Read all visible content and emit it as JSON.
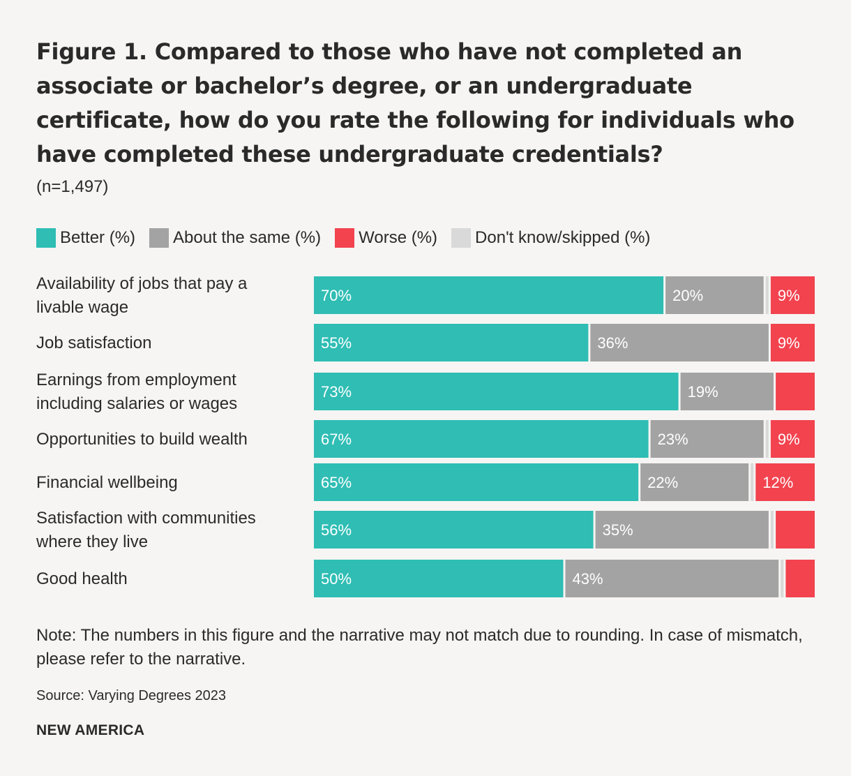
{
  "header": {
    "title": "Figure 1. Compared to those who have not completed an associate or bachelor’s degree, or an undergraduate certificate, how do you rate the following for individuals who have completed these undergraduate credentials?",
    "subtitle": "(n=1,497)"
  },
  "chart_data": {
    "type": "bar",
    "orientation": "horizontal",
    "stacked": true,
    "legend_position": "top-left",
    "grid": false,
    "xlim": [
      0,
      100
    ],
    "categories": [
      [
        "Availability of jobs that pay a",
        "livable wage"
      ],
      [
        "Job satisfaction"
      ],
      [
        "Earnings from employment",
        "including salaries or wages"
      ],
      [
        "Opportunities to build wealth"
      ],
      [
        "Financial wellbeing"
      ],
      [
        "Satisfaction with communities",
        "where they live"
      ],
      [
        "Good health"
      ]
    ],
    "series": [
      {
        "name": "Better (%)",
        "color": "#2fbdb4",
        "values": [
          70,
          55,
          73,
          67,
          65,
          56,
          50
        ],
        "labels": [
          "70%",
          "55%",
          "73%",
          "67%",
          "65%",
          "56%",
          "50%"
        ]
      },
      {
        "name": "About the same (%)",
        "color": "#a3a3a3",
        "values": [
          20,
          36,
          19,
          23,
          22,
          35,
          43
        ],
        "labels": [
          "20%",
          "36%",
          "19%",
          "23%",
          "22%",
          "35%",
          "43%"
        ]
      },
      {
        "name": "Don't know/skipped (%)",
        "color": "#d9d9d9",
        "values": [
          1,
          0,
          0,
          1,
          1,
          1,
          1
        ],
        "labels": [
          "",
          "",
          "",
          "",
          "",
          "",
          ""
        ]
      },
      {
        "name": "Worse (%)",
        "color": "#f2434f",
        "values": [
          9,
          9,
          8,
          9,
          12,
          8,
          6
        ],
        "labels": [
          "9%",
          "9%",
          "",
          "9%",
          "12%",
          "",
          ""
        ]
      }
    ],
    "legend_order": [
      0,
      1,
      3,
      2
    ]
  },
  "footer": {
    "note": "Note: The numbers in this figure and the narrative may not match due to rounding. In case of mismatch, please refer to the narrative.",
    "source": "Source: Varying Degrees 2023",
    "brand": "NEW AMERICA"
  }
}
